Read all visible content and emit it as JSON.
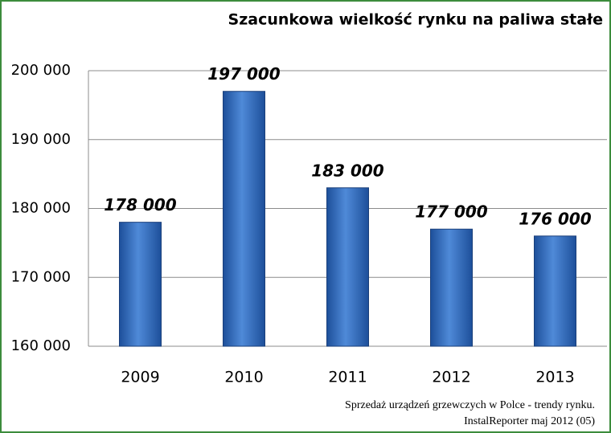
{
  "chart_data": {
    "type": "bar",
    "title": "Szacunkowa wielkość rynku na paliwa stałe",
    "categories": [
      "2009",
      "2010",
      "2011",
      "2012",
      "2013"
    ],
    "values": [
      178000,
      197000,
      183000,
      177000,
      176000
    ],
    "value_labels": [
      "178 000",
      "197 000",
      "183 000",
      "177 000",
      "176 000"
    ],
    "color": "#3a72c4",
    "ylim": [
      160000,
      200000
    ],
    "yticks": [
      {
        "value": 160000,
        "label": "160 000"
      },
      {
        "value": 170000,
        "label": "170 000"
      },
      {
        "value": 180000,
        "label": "180 000"
      },
      {
        "value": 190000,
        "label": "190 000"
      },
      {
        "value": 200000,
        "label": "200 000"
      }
    ],
    "grid": true,
    "source": [
      "Sprzedaż urządzeń grzewczych w Polce - trendy rynku.",
      "InstalReporter maj 2012 (05)"
    ]
  }
}
